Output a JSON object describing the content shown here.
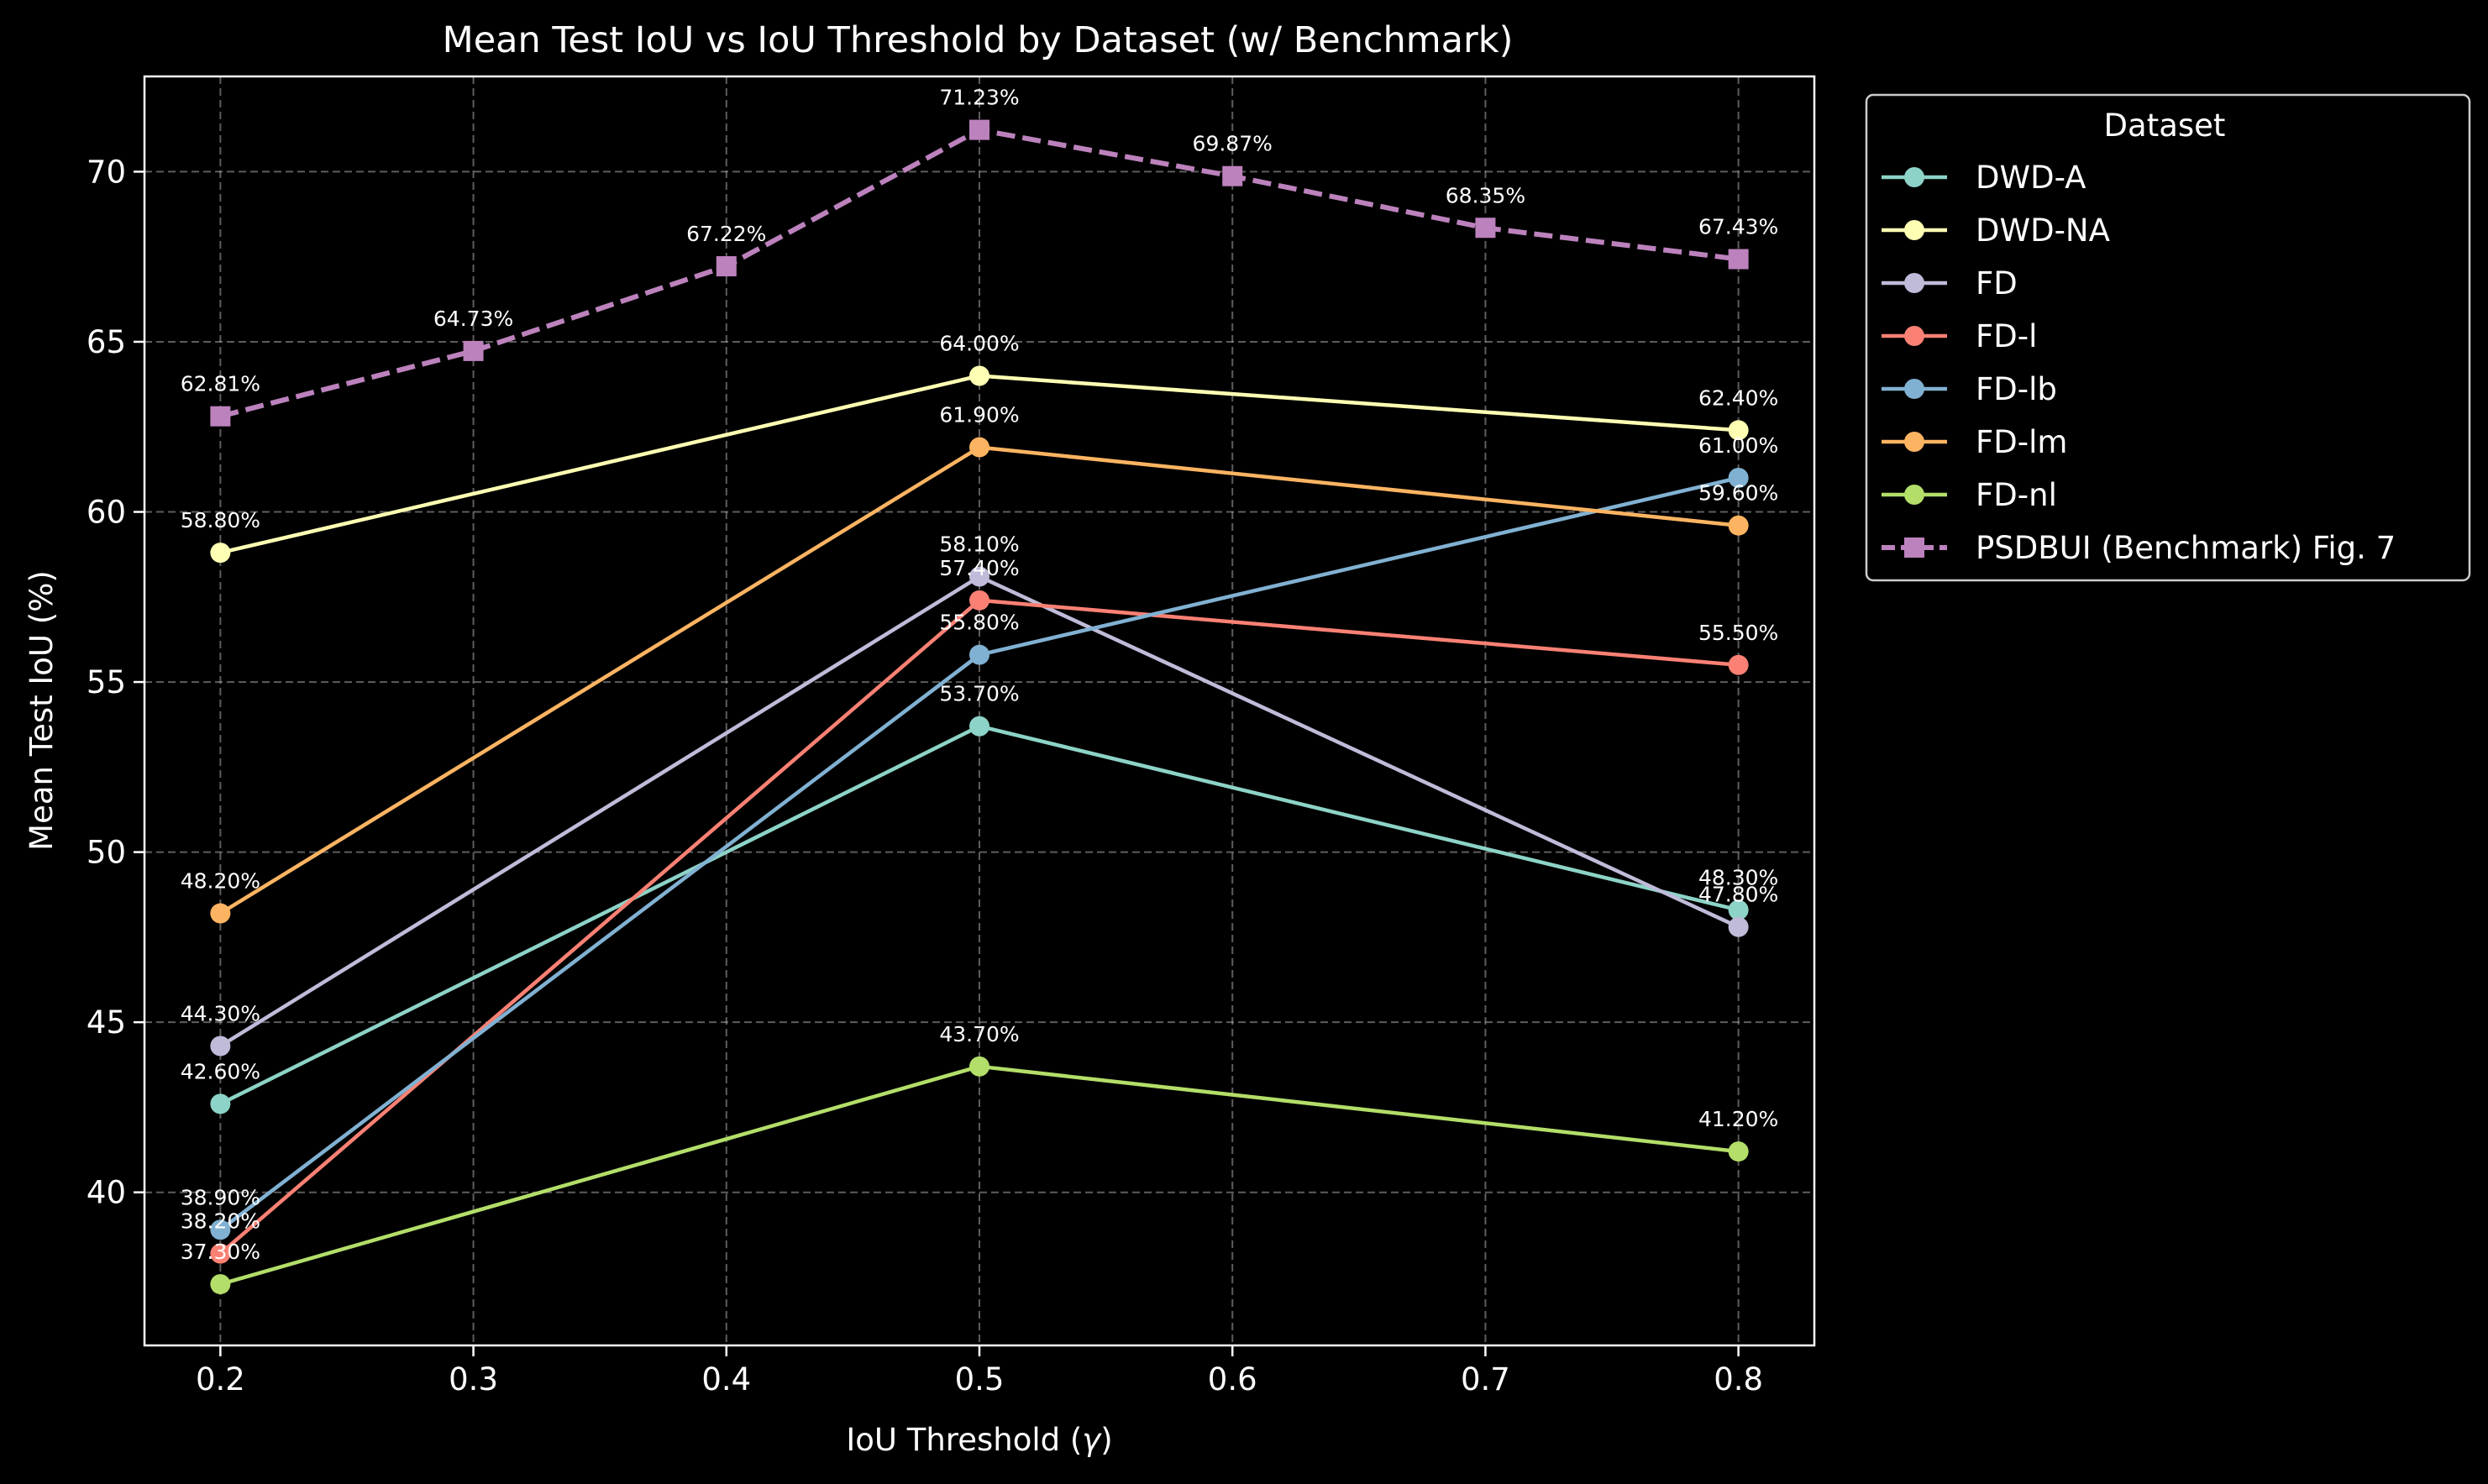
{
  "chart_data": {
    "type": "line",
    "title": "Mean Test IoU vs IoU Threshold by Dataset (w/ Benchmark)",
    "xlabel": "IoU Threshold (",
    "xlabel_symbol": "γ",
    "xlabel_end": ")",
    "ylabel": "Mean Test IoU (%)",
    "xlim": [
      0.17,
      0.83
    ],
    "ylim": [
      35.5,
      72.8
    ],
    "xticks": [
      0.2,
      0.3,
      0.4,
      0.5,
      0.6,
      0.7,
      0.8
    ],
    "xtick_labels": [
      "0.2",
      "0.3",
      "0.4",
      "0.5",
      "0.6",
      "0.7",
      "0.8"
    ],
    "yticks": [
      40,
      45,
      50,
      55,
      60,
      65,
      70
    ],
    "ytick_labels": [
      "40",
      "45",
      "50",
      "55",
      "60",
      "65",
      "70"
    ],
    "grid": true,
    "legend": {
      "title": "Dataset",
      "placement": "outside-right-top"
    },
    "background": "#000000",
    "series": [
      {
        "name": "DWD-A",
        "color": "#8dd3c7",
        "marker": "circle",
        "dashed": false,
        "x": [
          0.2,
          0.5,
          0.8
        ],
        "y": [
          42.6,
          53.7,
          48.3
        ],
        "labels": [
          "42.60%",
          "53.70%",
          "48.30%"
        ]
      },
      {
        "name": "DWD-NA",
        "color": "#feffb3",
        "marker": "circle",
        "dashed": false,
        "x": [
          0.2,
          0.5,
          0.8
        ],
        "y": [
          58.8,
          64.0,
          62.4
        ],
        "labels": [
          "58.80%",
          "64.00%",
          "62.40%"
        ]
      },
      {
        "name": "FD",
        "color": "#bfbbd9",
        "marker": "circle",
        "dashed": false,
        "x": [
          0.2,
          0.5,
          0.8
        ],
        "y": [
          44.3,
          58.1,
          47.8
        ],
        "labels": [
          "44.30%",
          "58.10%",
          "47.80%"
        ]
      },
      {
        "name": "FD-l",
        "color": "#fa8174",
        "marker": "circle",
        "dashed": false,
        "x": [
          0.2,
          0.5,
          0.8
        ],
        "y": [
          38.2,
          57.4,
          55.5
        ],
        "labels": [
          "38.20%",
          "57.40%",
          "55.50%"
        ]
      },
      {
        "name": "FD-lb",
        "color": "#81b1d2",
        "marker": "circle",
        "dashed": false,
        "x": [
          0.2,
          0.5,
          0.8
        ],
        "y": [
          38.9,
          55.8,
          61.0
        ],
        "labels": [
          "38.90%",
          "55.80%",
          "61.00%"
        ]
      },
      {
        "name": "FD-lm",
        "color": "#fdb462",
        "marker": "circle",
        "dashed": false,
        "x": [
          0.2,
          0.5,
          0.8
        ],
        "y": [
          48.2,
          61.9,
          59.6
        ],
        "labels": [
          "48.20%",
          "61.90%",
          "59.60%"
        ]
      },
      {
        "name": "FD-nl",
        "color": "#b3de69",
        "marker": "circle",
        "dashed": false,
        "x": [
          0.2,
          0.5,
          0.8
        ],
        "y": [
          37.3,
          43.7,
          41.2
        ],
        "labels": [
          "37.30%",
          "43.70%",
          "41.20%"
        ]
      },
      {
        "name": "PSDBUI (Benchmark) Fig. 7",
        "color": "#bc82bd",
        "marker": "square",
        "dashed": true,
        "x": [
          0.2,
          0.3,
          0.4,
          0.5,
          0.6,
          0.7,
          0.8
        ],
        "y": [
          62.81,
          64.73,
          67.22,
          71.23,
          69.87,
          68.35,
          67.43
        ],
        "labels": [
          "62.81%",
          "64.73%",
          "67.22%",
          "71.23%",
          "69.87%",
          "68.35%",
          "67.43%"
        ]
      }
    ]
  }
}
